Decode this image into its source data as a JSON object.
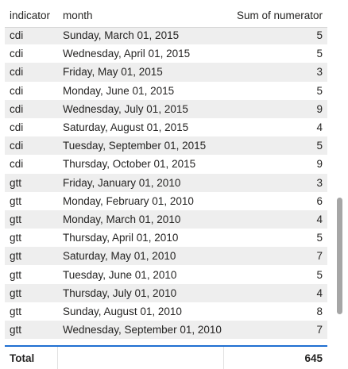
{
  "table": {
    "columns": {
      "indicator": "indicator",
      "month": "month",
      "sum": "Sum of numerator"
    },
    "rows": [
      {
        "indicator": "cdi",
        "month": "Sunday, March 01, 2015",
        "sum": "5"
      },
      {
        "indicator": "cdi",
        "month": "Wednesday, April 01, 2015",
        "sum": "5"
      },
      {
        "indicator": "cdi",
        "month": "Friday, May 01, 2015",
        "sum": "3"
      },
      {
        "indicator": "cdi",
        "month": "Monday, June 01, 2015",
        "sum": "5"
      },
      {
        "indicator": "cdi",
        "month": "Wednesday, July 01, 2015",
        "sum": "9"
      },
      {
        "indicator": "cdi",
        "month": "Saturday, August 01, 2015",
        "sum": "4"
      },
      {
        "indicator": "cdi",
        "month": "Tuesday, September 01, 2015",
        "sum": "5"
      },
      {
        "indicator": "cdi",
        "month": "Thursday, October 01, 2015",
        "sum": "9"
      },
      {
        "indicator": "gtt",
        "month": "Friday, January 01, 2010",
        "sum": "3"
      },
      {
        "indicator": "gtt",
        "month": "Monday, February 01, 2010",
        "sum": "6"
      },
      {
        "indicator": "gtt",
        "month": "Monday, March 01, 2010",
        "sum": "4"
      },
      {
        "indicator": "gtt",
        "month": "Thursday, April 01, 2010",
        "sum": "5"
      },
      {
        "indicator": "gtt",
        "month": "Saturday, May 01, 2010",
        "sum": "7"
      },
      {
        "indicator": "gtt",
        "month": "Tuesday, June 01, 2010",
        "sum": "5"
      },
      {
        "indicator": "gtt",
        "month": "Thursday, July 01, 2010",
        "sum": "4"
      },
      {
        "indicator": "gtt",
        "month": "Sunday, August 01, 2010",
        "sum": "8"
      },
      {
        "indicator": "gtt",
        "month": "Wednesday, September 01, 2010",
        "sum": "7"
      }
    ],
    "total": {
      "label": "Total",
      "sum": "645"
    }
  },
  "colors": {
    "header_text": "#252423",
    "row_alt_bg": "#eeeeee",
    "total_border": "#1f6fd1",
    "scroll_thumb": "#a6a6a6"
  }
}
